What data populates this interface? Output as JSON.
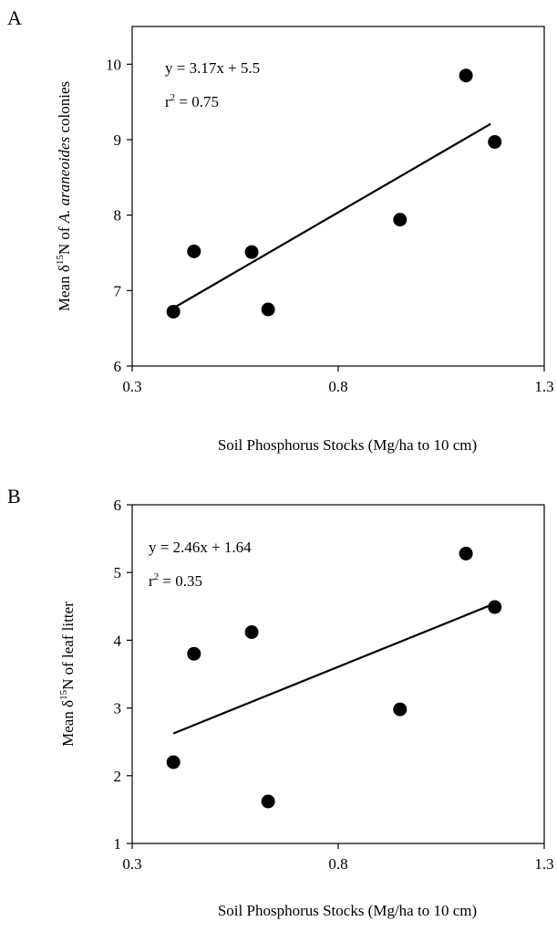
{
  "chart_data": [
    {
      "type": "scatter",
      "panel": "A",
      "xlabel": "Soil Phosphorus Stocks (Mg/ha to 10 cm)",
      "ylabel_pre": "Mean δ",
      "ylabel_sup": "15",
      "ylabel_mid": "N of ",
      "ylabel_italic": "A. araneoides",
      "ylabel_post": " colonies",
      "xlim": [
        0.3,
        1.3
      ],
      "ylim": [
        6,
        10.5
      ],
      "xticks": [
        0.3,
        0.8,
        1.3
      ],
      "xtick_labels": [
        "0.3",
        "0.8",
        "1.3"
      ],
      "yticks": [
        6,
        7,
        8,
        9,
        10
      ],
      "ytick_labels": [
        "6",
        "7",
        "8",
        "9",
        "10"
      ],
      "grid": false,
      "points": [
        {
          "x": 0.4,
          "y": 6.72
        },
        {
          "x": 0.45,
          "y": 7.52
        },
        {
          "x": 0.59,
          "y": 7.51
        },
        {
          "x": 0.63,
          "y": 6.75
        },
        {
          "x": 0.95,
          "y": 7.94
        },
        {
          "x": 1.11,
          "y": 9.85
        },
        {
          "x": 1.18,
          "y": 8.97
        }
      ],
      "trendline": {
        "slope": 3.17,
        "intercept": 5.5,
        "x_range": [
          0.4,
          1.17
        ]
      },
      "equation_text": "y = 3.17x + 5.5",
      "r2_pre": "r",
      "r2_sup": "2",
      "r2_post": " = 0.75"
    },
    {
      "type": "scatter",
      "panel": "B",
      "xlabel": "Soil Phosphorus Stocks (Mg/ha to 10 cm)",
      "ylabel_pre": "Mean δ",
      "ylabel_sup": "15",
      "ylabel_mid": "N of leaf litter",
      "ylabel_italic": "",
      "ylabel_post": "",
      "xlim": [
        0.3,
        1.3
      ],
      "ylim": [
        1,
        6
      ],
      "xticks": [
        0.3,
        0.8,
        1.3
      ],
      "xtick_labels": [
        "0.3",
        "0.8",
        "1.3"
      ],
      "yticks": [
        1,
        2,
        3,
        4,
        5,
        6
      ],
      "ytick_labels": [
        "1",
        "2",
        "3",
        "4",
        "5",
        "6"
      ],
      "grid": false,
      "points": [
        {
          "x": 0.4,
          "y": 2.2
        },
        {
          "x": 0.45,
          "y": 3.8
        },
        {
          "x": 0.59,
          "y": 4.12
        },
        {
          "x": 0.63,
          "y": 1.62
        },
        {
          "x": 0.95,
          "y": 2.98
        },
        {
          "x": 1.11,
          "y": 5.28
        },
        {
          "x": 1.18,
          "y": 4.49
        }
      ],
      "trendline": {
        "slope": 2.46,
        "intercept": 1.64,
        "x_range": [
          0.4,
          1.17
        ]
      },
      "equation_text": "y = 2.46x + 1.64",
      "r2_pre": "r",
      "r2_sup": "2",
      "r2_post": " = 0.35"
    }
  ]
}
